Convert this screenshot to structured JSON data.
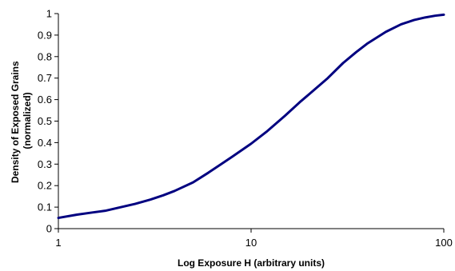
{
  "chart_data": {
    "type": "line",
    "xlabel": "Log Exposure H (arbitrary units)",
    "ylabel_line1": "Density of Exposed Grains",
    "ylabel_line2": "(normalized)",
    "x_scale": "log",
    "xlim": [
      1,
      100
    ],
    "ylim": [
      0,
      1
    ],
    "x_ticks": [
      1,
      10,
      100
    ],
    "x_tick_labels": [
      "1",
      "10",
      "100"
    ],
    "y_ticks": [
      0,
      0.1,
      0.2,
      0.3,
      0.4,
      0.5,
      0.6,
      0.7,
      0.8,
      0.9,
      1
    ],
    "y_tick_labels": [
      "0",
      "0.1",
      "0.2",
      "0.3",
      "0.4",
      "0.5",
      "0.6",
      "0.7",
      "0.8",
      "0.9",
      "1"
    ],
    "grid": false,
    "legend": "none",
    "series": [
      {
        "color": "#000080",
        "x": [
          1,
          1.25,
          1.5,
          1.75,
          2,
          2.5,
          3,
          3.5,
          4,
          5,
          6,
          7,
          8,
          10,
          12,
          15,
          18,
          20,
          25,
          30,
          35,
          40,
          50,
          60,
          70,
          80,
          90,
          100
        ],
        "y": [
          0.05,
          0.065,
          0.075,
          0.083,
          0.095,
          0.115,
          0.135,
          0.155,
          0.175,
          0.215,
          0.26,
          0.3,
          0.335,
          0.395,
          0.45,
          0.525,
          0.59,
          0.625,
          0.7,
          0.77,
          0.82,
          0.86,
          0.915,
          0.95,
          0.97,
          0.982,
          0.99,
          0.995
        ]
      }
    ]
  }
}
